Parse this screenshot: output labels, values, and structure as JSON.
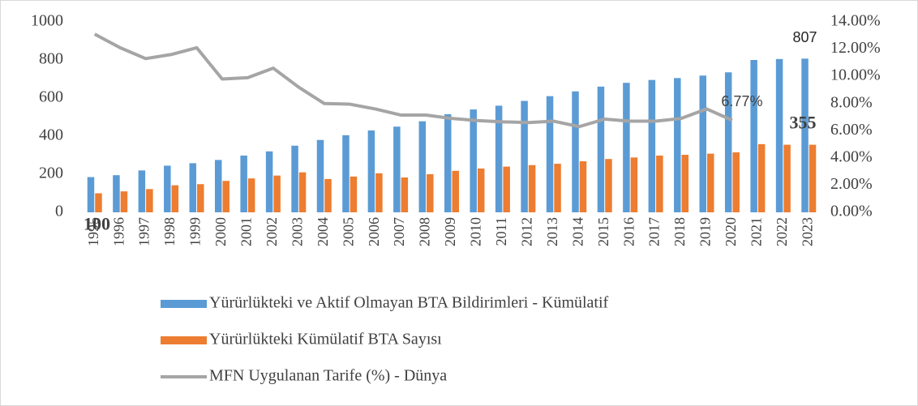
{
  "chart_data": {
    "type": "bar-line",
    "categories": [
      "1995",
      "1996",
      "1997",
      "1998",
      "1999",
      "2000",
      "2001",
      "2002",
      "2003",
      "2004",
      "2005",
      "2006",
      "2007",
      "2008",
      "2009",
      "2010",
      "2011",
      "2012",
      "2013",
      "2014",
      "2015",
      "2016",
      "2017",
      "2018",
      "2019",
      "2020",
      "2021",
      "2022",
      "2023"
    ],
    "series": [
      {
        "name": "Yürürlükteki ve Aktif Olmayan BTA Bildirimleri - Kümülatif",
        "type": "bar",
        "color": "#5b9bd5",
        "values": [
          185,
          195,
          220,
          245,
          258,
          275,
          298,
          320,
          350,
          380,
          405,
          430,
          450,
          478,
          515,
          540,
          560,
          585,
          610,
          635,
          660,
          680,
          695,
          705,
          718,
          735,
          800,
          805,
          807
        ],
        "value_labels": [
          null,
          null,
          null,
          null,
          null,
          null,
          null,
          null,
          null,
          null,
          null,
          null,
          null,
          null,
          null,
          null,
          null,
          null,
          null,
          null,
          null,
          null,
          null,
          null,
          null,
          null,
          null,
          null,
          "807"
        ]
      },
      {
        "name": "Yürürlükteki Kümülatif BTA Sayısı",
        "type": "bar",
        "color": "#ed7d31",
        "values": [
          100,
          110,
          122,
          142,
          148,
          165,
          178,
          193,
          210,
          175,
          188,
          205,
          183,
          200,
          218,
          230,
          240,
          248,
          255,
          268,
          280,
          288,
          298,
          302,
          308,
          315,
          358,
          355,
          355
        ],
        "value_labels": [
          "100",
          null,
          null,
          null,
          null,
          null,
          null,
          null,
          null,
          null,
          null,
          null,
          null,
          null,
          null,
          null,
          null,
          null,
          null,
          null,
          null,
          null,
          null,
          null,
          null,
          null,
          null,
          null,
          "355"
        ]
      },
      {
        "name": "MFN Uygulanan Tarife (%) - Dünya",
        "type": "line",
        "axis": "y2",
        "color": "#a5a5a5",
        "values": [
          13.1,
          12.1,
          11.3,
          11.6,
          12.1,
          9.8,
          9.9,
          10.6,
          9.2,
          8.0,
          7.95,
          7.6,
          7.15,
          7.15,
          6.9,
          6.75,
          6.65,
          6.6,
          6.7,
          6.3,
          6.85,
          6.7,
          6.7,
          6.9,
          7.6,
          6.77,
          null,
          null,
          null
        ],
        "value_labels": [
          null,
          null,
          null,
          null,
          null,
          null,
          null,
          null,
          null,
          null,
          null,
          null,
          null,
          null,
          null,
          null,
          null,
          null,
          null,
          null,
          null,
          null,
          null,
          null,
          null,
          "6.77%",
          null,
          null,
          null
        ]
      }
    ],
    "ylim": [
      0,
      1000
    ],
    "yticks": [
      0,
      200,
      400,
      600,
      800,
      1000
    ],
    "y2lim": [
      0,
      14
    ],
    "y2ticks": [
      {
        "value": 0,
        "label": "0.00%"
      },
      {
        "value": 2,
        "label": "2.00%"
      },
      {
        "value": 4,
        "label": "4.00%"
      },
      {
        "value": 6,
        "label": "6.00%"
      },
      {
        "value": 8,
        "label": "8.00%"
      },
      {
        "value": 10,
        "label": "10.00%"
      },
      {
        "value": 12,
        "label": "12.00%"
      },
      {
        "value": 14,
        "label": "14.00%"
      }
    ],
    "legend": "bottom"
  }
}
